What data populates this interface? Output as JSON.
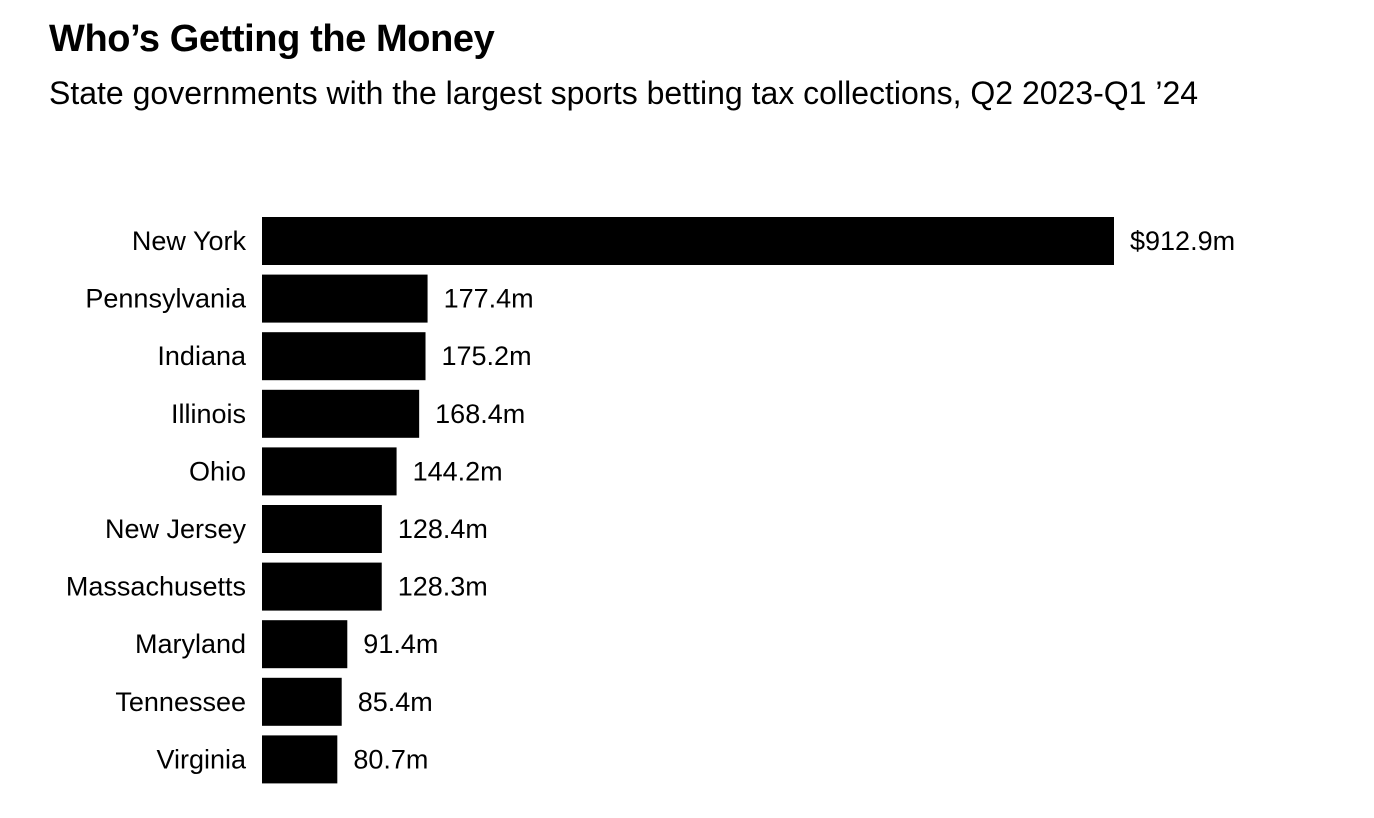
{
  "chart_data": {
    "type": "bar",
    "orientation": "horizontal",
    "title": "Who’s Getting the Money",
    "subtitle": "State governments with the largest sports betting tax collections, Q2 2023-Q1 ’24",
    "categories": [
      "New York",
      "Pennsylvania",
      "Indiana",
      "Illinois",
      "Ohio",
      "New Jersey",
      "Massachusetts",
      "Maryland",
      "Tennessee",
      "Virginia"
    ],
    "values": [
      912.9,
      177.4,
      175.2,
      168.4,
      144.2,
      128.4,
      128.3,
      91.4,
      85.4,
      80.7
    ],
    "value_labels": [
      "$912.9m",
      "177.4m",
      "175.2m",
      "168.4m",
      "144.2m",
      "128.4m",
      "128.3m",
      "91.4m",
      "85.4m",
      "80.7m"
    ],
    "xlabel": "",
    "ylabel": "",
    "xlim": [
      0,
      912.9
    ],
    "grid": false,
    "legend": "none",
    "bar_color": "#000000"
  }
}
